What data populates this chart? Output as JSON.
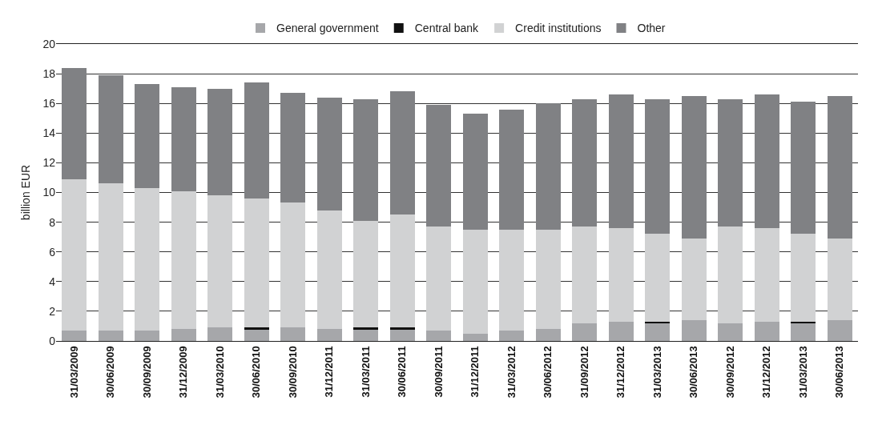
{
  "chart_data": {
    "type": "bar",
    "stacked": true,
    "ylabel": "billion EUR",
    "ylim": [
      0,
      20
    ],
    "yticks": [
      0,
      2,
      4,
      6,
      8,
      10,
      12,
      14,
      16,
      18,
      20
    ],
    "grid": "y",
    "legend": "top",
    "categories": [
      "31/03/2009",
      "30/06/2009",
      "30/09/2009",
      "31/12/2009",
      "31/03/2010",
      "30/06/2010",
      "30/09/2010",
      "31/12/2011",
      "31/03/2011",
      "30/06/2011",
      "30/09/2011",
      "31/12/2011",
      "31/03/2012",
      "30/06/2012",
      "31/09/2012",
      "31/12/2012",
      "31/03/2013",
      "30/06/2013",
      "30/09/2012",
      "31/12/2012",
      "31/03/2013",
      "30/06/2013"
    ],
    "series": [
      {
        "name": "General government",
        "color": "#a6a7aa",
        "values": [
          0.7,
          0.7,
          0.7,
          0.8,
          0.9,
          0.8,
          0.9,
          0.8,
          0.8,
          0.8,
          0.7,
          0.5,
          0.7,
          0.8,
          1.2,
          1.3,
          1.2,
          1.4,
          1.2,
          1.3,
          1.2,
          1.4
        ]
      },
      {
        "name": "Central bank",
        "color": "#111111",
        "values": [
          0,
          0,
          0,
          0,
          0,
          0.1,
          0,
          0,
          0.1,
          0.1,
          0,
          0,
          0,
          0,
          0,
          0,
          0.1,
          0,
          0,
          0,
          0.1,
          0
        ]
      },
      {
        "name": "Credit institutions",
        "color": "#d1d2d3",
        "values": [
          10.2,
          9.9,
          9.6,
          9.3,
          8.9,
          8.7,
          8.4,
          8.0,
          7.2,
          7.6,
          7.0,
          7.0,
          6.8,
          6.7,
          6.5,
          6.3,
          5.9,
          5.5,
          6.5,
          6.3,
          5.9,
          5.5
        ]
      },
      {
        "name": "Other",
        "color": "#808184",
        "values": [
          7.5,
          7.3,
          7.0,
          7.0,
          7.2,
          7.8,
          7.4,
          7.6,
          8.2,
          8.3,
          8.2,
          7.8,
          8.1,
          8.5,
          8.6,
          9.0,
          9.1,
          9.6,
          8.6,
          9.0,
          8.9,
          9.6
        ]
      }
    ]
  }
}
